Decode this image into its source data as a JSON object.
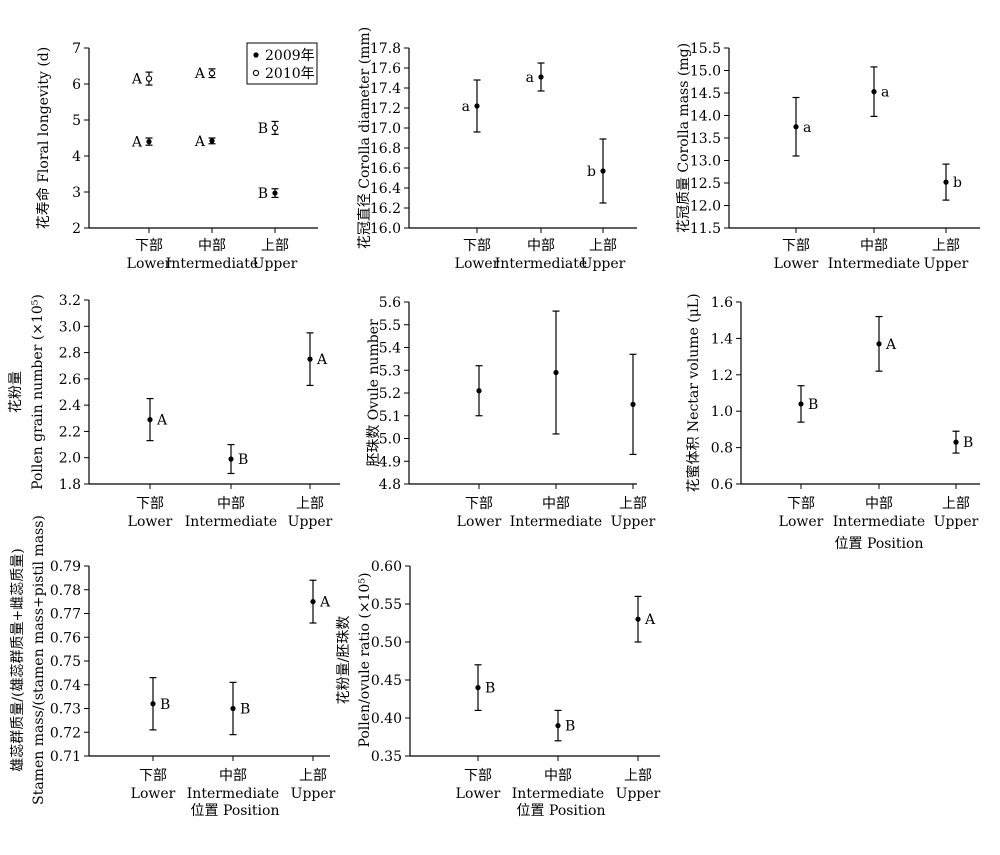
{
  "categories_cn": [
    "下部",
    "中部",
    "上部"
  ],
  "categories_en": [
    "Lower",
    "Intermediate",
    "Upper"
  ],
  "chart_data": [
    {
      "type": "scatter",
      "ylabel": "花寿命 Floral longevity (d)",
      "ylim": [
        2,
        7
      ],
      "yticks": [
        "2",
        "3",
        "4",
        "5",
        "6",
        "7"
      ],
      "legend": {
        "position": "top-right",
        "entries": [
          "2009年",
          "2010年"
        ]
      },
      "series": [
        {
          "name": "2009年",
          "marker": "filled",
          "values": [
            4.4,
            4.42,
            2.97
          ],
          "errors": [
            0.1,
            0.08,
            0.12
          ],
          "labels": [
            "A",
            "A",
            "B"
          ]
        },
        {
          "name": "2010年",
          "marker": "open",
          "values": [
            6.15,
            6.3,
            4.78
          ],
          "errors": [
            0.18,
            0.12,
            0.18
          ],
          "labels": [
            "A",
            "A",
            "B"
          ]
        }
      ]
    },
    {
      "type": "scatter",
      "ylabel": "花冠直径 Corolla diameter (mm)",
      "ylim": [
        16.0,
        17.8
      ],
      "yticks": [
        "16.0",
        "16.2",
        "16.4",
        "16.6",
        "16.8",
        "17.0",
        "17.2",
        "17.4",
        "17.6",
        "17.8"
      ],
      "series": [
        {
          "values": [
            17.22,
            17.51,
            16.57
          ],
          "errors": [
            0.26,
            0.14,
            0.32
          ],
          "labels": [
            "a",
            "a",
            "b"
          ],
          "label_side": "left"
        }
      ]
    },
    {
      "type": "scatter",
      "ylabel": "花冠质量 Corolla mass (mg)",
      "ylim": [
        11.5,
        15.5
      ],
      "yticks": [
        "11.5",
        "12.0",
        "12.5",
        "13.0",
        "13.5",
        "14.0",
        "14.5",
        "15.0",
        "15.5"
      ],
      "series": [
        {
          "values": [
            13.75,
            14.53,
            12.52
          ],
          "errors": [
            0.65,
            0.55,
            0.4
          ],
          "labels": [
            "a",
            "a",
            "b"
          ]
        }
      ]
    },
    {
      "type": "scatter",
      "ylabel_cn": "花粉量",
      "ylabel": "Pollen grain number (×10⁵)",
      "ylim": [
        1.8,
        3.2
      ],
      "yticks": [
        "1.8",
        "2.0",
        "2.2",
        "2.4",
        "2.6",
        "2.8",
        "3.0",
        "3.2"
      ],
      "series": [
        {
          "values": [
            2.29,
            1.99,
            2.75
          ],
          "errors": [
            0.16,
            0.11,
            0.2
          ],
          "labels": [
            "A",
            "B",
            "A"
          ]
        }
      ]
    },
    {
      "type": "scatter",
      "ylabel": "胚珠数 Ovule number",
      "ylim": [
        4.8,
        5.6
      ],
      "yticks": [
        "4.8",
        "4.9",
        "5.0",
        "5.1",
        "5.2",
        "5.3",
        "5.4",
        "5.5",
        "5.6"
      ],
      "series": [
        {
          "values": [
            5.21,
            5.29,
            5.15
          ],
          "errors": [
            0.11,
            0.27,
            0.22
          ],
          "labels": [
            "",
            "",
            ""
          ]
        }
      ]
    },
    {
      "type": "scatter",
      "ylabel": "花蜜体积 Nectar volume (μL)",
      "xlabel": "位置 Position",
      "ylim": [
        0.6,
        1.6
      ],
      "yticks": [
        "0.6",
        "0.8",
        "1.0",
        "1.2",
        "1.4",
        "1.6"
      ],
      "series": [
        {
          "values": [
            1.04,
            1.37,
            0.83
          ],
          "errors": [
            0.1,
            0.15,
            0.06
          ],
          "labels": [
            "B",
            "A",
            "B"
          ]
        }
      ]
    },
    {
      "type": "scatter",
      "ylabel_cn": "雄蕊群质量/(雄蕊群质量+雌蕊质量)",
      "ylabel": "Stamen mass/(stamen mass+pistil mass)",
      "xlabel": "位置 Position",
      "ylim": [
        0.71,
        0.79
      ],
      "yticks": [
        "0.71",
        "0.72",
        "0.73",
        "0.74",
        "0.75",
        "0.76",
        "0.77",
        "0.78",
        "0.79"
      ],
      "series": [
        {
          "values": [
            0.732,
            0.73,
            0.775
          ],
          "errors": [
            0.011,
            0.011,
            0.009
          ],
          "labels": [
            "B",
            "B",
            "A"
          ]
        }
      ]
    },
    {
      "type": "scatter",
      "ylabel_cn": "花粉量/胚珠数",
      "ylabel": "Pollen/ovule ratio (×10⁵)",
      "xlabel": "位置 Position",
      "ylim": [
        0.35,
        0.6
      ],
      "yticks": [
        "0.35",
        "0.40",
        "0.45",
        "0.50",
        "0.55",
        "0.60"
      ],
      "series": [
        {
          "values": [
            0.44,
            0.39,
            0.53
          ],
          "errors": [
            0.03,
            0.02,
            0.03
          ],
          "labels": [
            "B",
            "B",
            "A"
          ]
        }
      ]
    }
  ]
}
